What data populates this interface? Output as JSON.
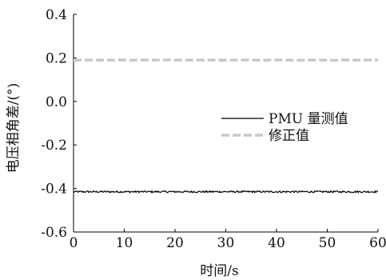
{
  "chart_data": {
    "type": "line",
    "xlabel": "时间/s",
    "ylabel": "电压相角差/(°)",
    "xlim": [
      0,
      60
    ],
    "ylim": [
      -0.6,
      0.4
    ],
    "x_ticks": [
      "0",
      "10",
      "20",
      "30",
      "40",
      "50",
      "60"
    ],
    "y_ticks": [
      "-0.6",
      "-0.4",
      "-0.2",
      "0.0",
      "0.2",
      "0.4"
    ],
    "grid": false,
    "legend_position": "center-right",
    "series": [
      {
        "name": "PMU 量测值",
        "color": "#000000",
        "style": "solid",
        "x_start": 0,
        "x_end": 60,
        "mean": -0.415,
        "noise_amplitude": 0.004
      },
      {
        "name": "修正值",
        "color": "#c8c8c8",
        "style": "dashed",
        "x_start": 0,
        "x_end": 60,
        "mean": 0.19,
        "noise_amplitude": 0.001
      }
    ]
  }
}
